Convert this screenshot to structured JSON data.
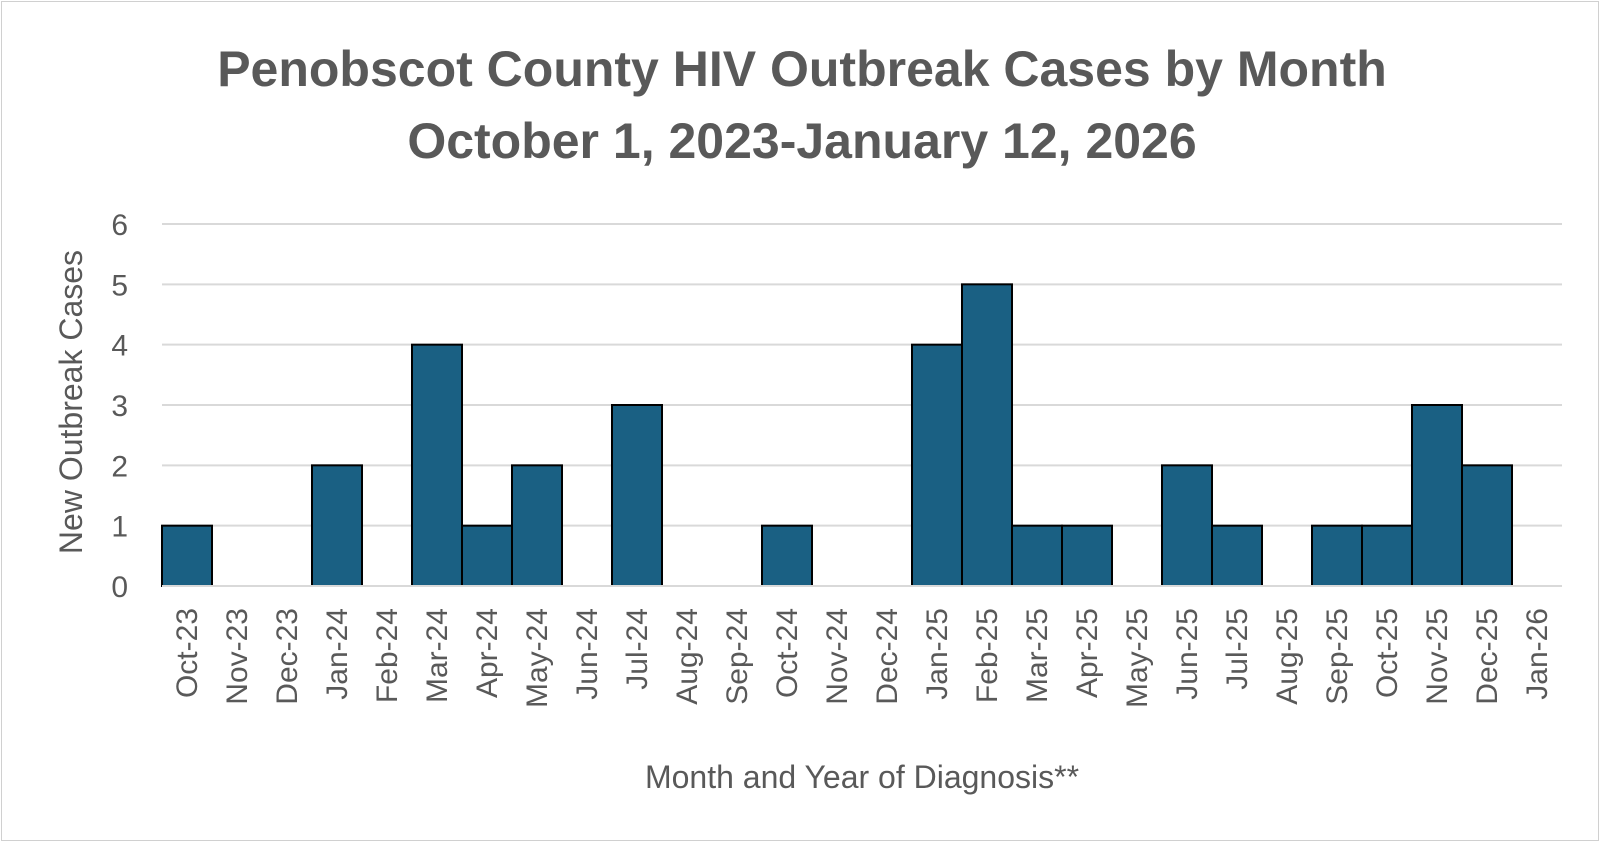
{
  "chart_data": {
    "type": "bar",
    "title": "Penobscot County HIV Outbreak Cases by Month",
    "subtitle": "October 1, 2023-January 12, 2026",
    "xlabel": "Month and Year of Diagnosis**",
    "ylabel": "New Outbreak Cases",
    "ylim": [
      0,
      6
    ],
    "yticks": [
      0,
      1,
      2,
      3,
      4,
      5,
      6
    ],
    "grid": true,
    "legend": "none",
    "colors": {
      "bar": "#1a6083",
      "bar_edge": "#000000",
      "grid": "#d9d9d9",
      "text": "#595959"
    },
    "categories": [
      "Oct-23",
      "Nov-23",
      "Dec-23",
      "Jan-24",
      "Feb-24",
      "Mar-24",
      "Apr-24",
      "May-24",
      "Jun-24",
      "Jul-24",
      "Aug-24",
      "Sep-24",
      "Oct-24",
      "Nov-24",
      "Dec-24",
      "Jan-25",
      "Feb-25",
      "Mar-25",
      "Apr-25",
      "May-25",
      "Jun-25",
      "Jul-25",
      "Aug-25",
      "Sep-25",
      "Oct-25",
      "Nov-25",
      "Dec-25",
      "Jan-26"
    ],
    "values": [
      1,
      0,
      0,
      2,
      0,
      4,
      1,
      2,
      0,
      3,
      0,
      0,
      1,
      0,
      0,
      4,
      5,
      1,
      1,
      0,
      2,
      1,
      0,
      1,
      1,
      3,
      2,
      0
    ]
  }
}
